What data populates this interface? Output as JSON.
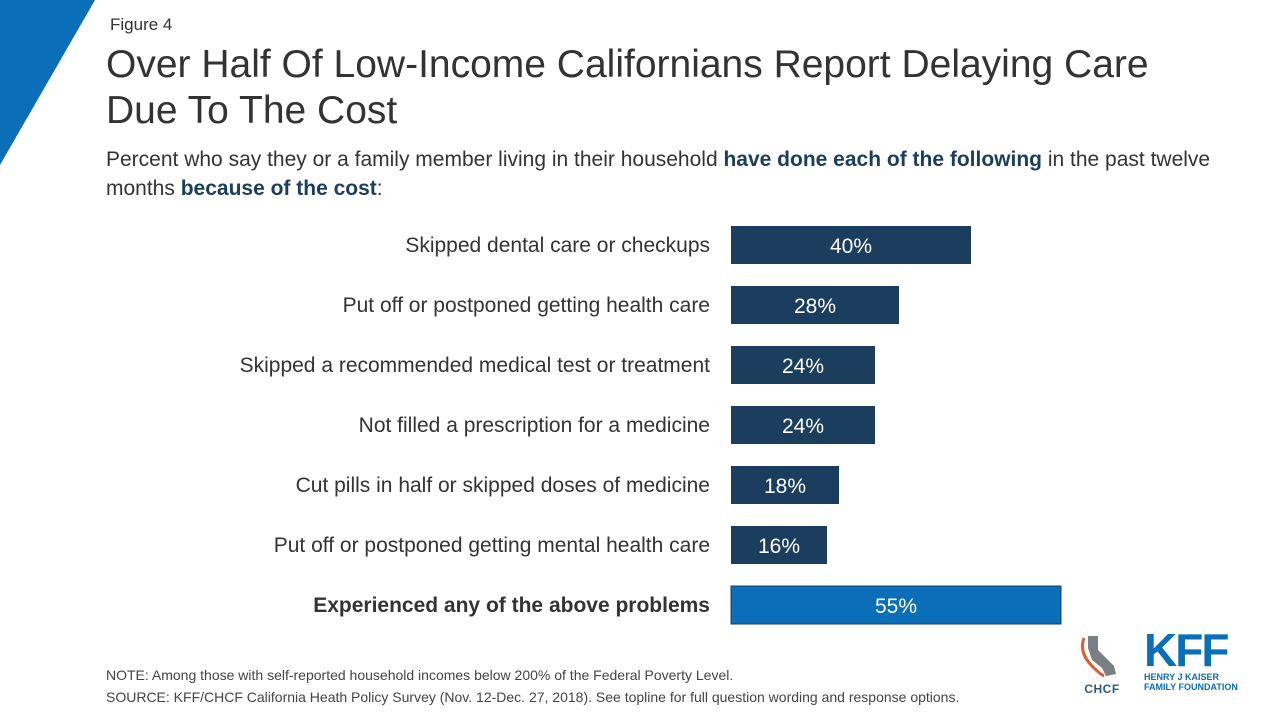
{
  "figure_label": "Figure 4",
  "title": "Over Half Of Low-Income Californians Report Delaying Care Due To The Cost",
  "subtitle": {
    "part1": "Percent who say they or a family member living in their household ",
    "bold1": "have done each of the following",
    "part2": " in the past twelve months ",
    "bold2": "because of the cost",
    "part3": ":"
  },
  "chart_data": {
    "type": "bar",
    "orientation": "horizontal",
    "categories": [
      "Skipped dental care or checkups",
      "Put off or postponed getting health care",
      "Skipped a recommended medical test or treatment",
      "Not filled a prescription for a medicine",
      "Cut pills in half or skipped doses of medicine",
      "Put off or postponed getting mental health care",
      "Experienced any of the above problems"
    ],
    "values": [
      40,
      28,
      24,
      24,
      18,
      16,
      55
    ],
    "value_labels": [
      "40%",
      "28%",
      "24%",
      "24%",
      "18%",
      "16%",
      "55%"
    ],
    "highlight_index": 6,
    "colors": {
      "bar": "#1b3e5e",
      "highlight": "#0a6fb8"
    },
    "xlim": [
      0,
      100
    ]
  },
  "note": "NOTE: Among those with self-reported household incomes below 200% of the Federal Poverty Level.",
  "source": "SOURCE: KFF/CHCF California Heath Policy Survey (Nov. 12-Dec. 27, 2018). See topline for full question wording and response options.",
  "logos": {
    "chcf": "CHCF",
    "kff": "KFF",
    "kff_line1": "HENRY J KAISER",
    "kff_line2": "FAMILY FOUNDATION"
  },
  "colors": {
    "accent": "#0a6fb8",
    "dark_navy": "#1b3e5e"
  }
}
